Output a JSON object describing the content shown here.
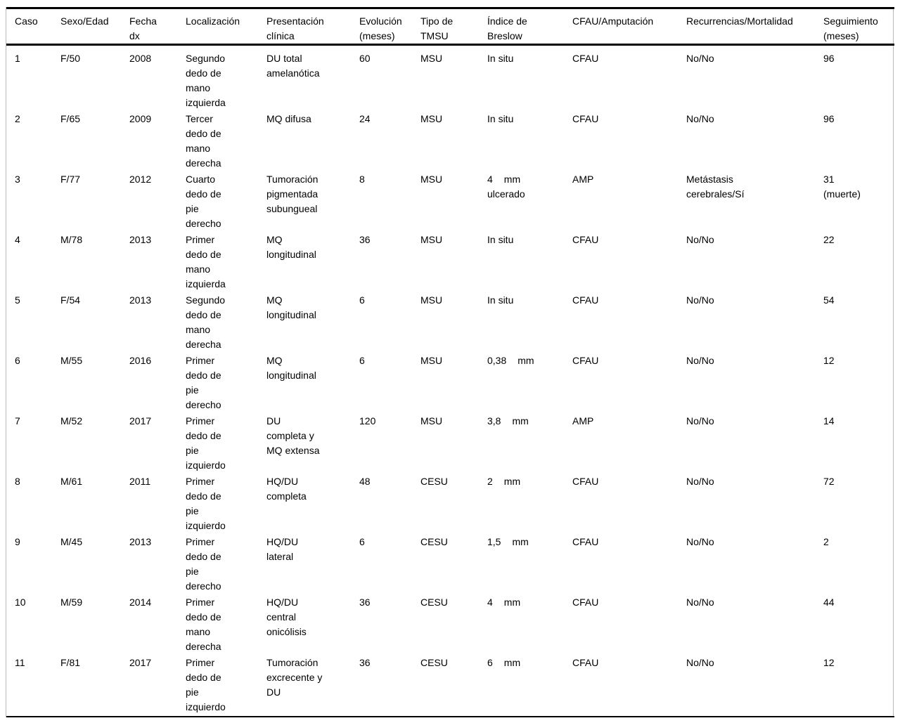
{
  "colors": {
    "background": "#ffffff",
    "text": "#000000",
    "rule": "#000000",
    "frame_border": "#b9b9b9"
  },
  "table": {
    "columns": [
      {
        "key": "caso",
        "label": "Caso"
      },
      {
        "key": "sexo_edad",
        "label": "Sexo/Edad"
      },
      {
        "key": "fecha_dx",
        "label": [
          "Fecha",
          "dx"
        ]
      },
      {
        "key": "localizacion",
        "label": "Localización"
      },
      {
        "key": "presentacion_clinica",
        "label": [
          "Presentación",
          "clínica"
        ]
      },
      {
        "key": "evolucion_meses",
        "label": [
          "Evolución",
          "(meses)"
        ]
      },
      {
        "key": "tipo_tmsu",
        "label": [
          "Tipo de",
          "TMSU"
        ]
      },
      {
        "key": "indice_breslow",
        "label": [
          "Índice de",
          "Breslow"
        ]
      },
      {
        "key": "cfau_amputacion",
        "label": "CFAU/Amputación"
      },
      {
        "key": "recurrencias_mortalidad",
        "label": "Recurrencias/Mortalidad"
      },
      {
        "key": "seguimiento_meses",
        "label": [
          "Seguimiento",
          "(meses)"
        ]
      }
    ],
    "rows": [
      {
        "caso": "1",
        "sexo_edad": "F/50",
        "fecha_dx": "2008",
        "localizacion": [
          "Segundo",
          "dedo de",
          "mano",
          "izquierda"
        ],
        "presentacion_clinica": [
          "DU total",
          "amelanótica"
        ],
        "evolucion_meses": "60",
        "tipo_tmsu": "MSU",
        "indice_breslow": {
          "value": "In situ"
        },
        "cfau_amputacion": "CFAU",
        "recurrencias_mortalidad": "No/No",
        "seguimiento_meses": "96"
      },
      {
        "caso": "2",
        "sexo_edad": "F/65",
        "fecha_dx": "2009",
        "localizacion": [
          "Tercer",
          "dedo de",
          "mano",
          "derecha"
        ],
        "presentacion_clinica": "MQ difusa",
        "evolucion_meses": "24",
        "tipo_tmsu": "MSU",
        "indice_breslow": {
          "value": "In situ"
        },
        "cfau_amputacion": "CFAU",
        "recurrencias_mortalidad": "No/No",
        "seguimiento_meses": "96"
      },
      {
        "caso": "3",
        "sexo_edad": "F/77",
        "fecha_dx": "2012",
        "localizacion": [
          "Cuarto",
          "dedo de",
          "pie",
          "derecho"
        ],
        "presentacion_clinica": [
          "Tumoración",
          "pigmentada",
          "subungueal"
        ],
        "evolucion_meses": "8",
        "tipo_tmsu": "MSU",
        "indice_breslow": {
          "value": "4",
          "unit": "mm",
          "note": "ulcerado"
        },
        "cfau_amputacion": "AMP",
        "recurrencias_mortalidad": [
          "Metástasis",
          "cerebrales/Sí"
        ],
        "seguimiento_meses": [
          "31",
          "(muerte)"
        ]
      },
      {
        "caso": "4",
        "sexo_edad": "M/78",
        "fecha_dx": "2013",
        "localizacion": [
          "Primer",
          "dedo de",
          "mano",
          "izquierda"
        ],
        "presentacion_clinica": [
          "MQ",
          "longitudinal"
        ],
        "evolucion_meses": "36",
        "tipo_tmsu": "MSU",
        "indice_breslow": {
          "value": "In situ"
        },
        "cfau_amputacion": "CFAU",
        "recurrencias_mortalidad": "No/No",
        "seguimiento_meses": "22"
      },
      {
        "caso": "5",
        "sexo_edad": "F/54",
        "fecha_dx": "2013",
        "localizacion": [
          "Segundo",
          "dedo de",
          "mano",
          "derecha"
        ],
        "presentacion_clinica": [
          "MQ",
          "longitudinal"
        ],
        "evolucion_meses": "6",
        "tipo_tmsu": "MSU",
        "indice_breslow": {
          "value": "In situ"
        },
        "cfau_amputacion": "CFAU",
        "recurrencias_mortalidad": "No/No",
        "seguimiento_meses": "54"
      },
      {
        "caso": "6",
        "sexo_edad": "M/55",
        "fecha_dx": "2016",
        "localizacion": [
          "Primer",
          "dedo de",
          "pie",
          "derecho"
        ],
        "presentacion_clinica": [
          "MQ",
          "longitudinal"
        ],
        "evolucion_meses": "6",
        "tipo_tmsu": "MSU",
        "indice_breslow": {
          "value": "0,38",
          "unit": "mm"
        },
        "cfau_amputacion": "CFAU",
        "recurrencias_mortalidad": "No/No",
        "seguimiento_meses": "12"
      },
      {
        "caso": "7",
        "sexo_edad": "M/52",
        "fecha_dx": "2017",
        "localizacion": [
          "Primer",
          "dedo de",
          "pie",
          "izquierdo"
        ],
        "presentacion_clinica": [
          "DU",
          "completa y",
          "MQ extensa"
        ],
        "evolucion_meses": "120",
        "tipo_tmsu": "MSU",
        "indice_breslow": {
          "value": "3,8",
          "unit": "mm"
        },
        "cfau_amputacion": "AMP",
        "recurrencias_mortalidad": "No/No",
        "seguimiento_meses": "14"
      },
      {
        "caso": "8",
        "sexo_edad": "M/61",
        "fecha_dx": "2011",
        "localizacion": [
          "Primer",
          "dedo de",
          "pie",
          "izquierdo"
        ],
        "presentacion_clinica": [
          "HQ/DU",
          "completa"
        ],
        "evolucion_meses": "48",
        "tipo_tmsu": "CESU",
        "indice_breslow": {
          "value": "2",
          "unit": "mm"
        },
        "cfau_amputacion": "CFAU",
        "recurrencias_mortalidad": "No/No",
        "seguimiento_meses": "72"
      },
      {
        "caso": "9",
        "sexo_edad": "M/45",
        "fecha_dx": "2013",
        "localizacion": [
          "Primer",
          "dedo de",
          "pie",
          "derecho"
        ],
        "presentacion_clinica": [
          "HQ/DU",
          "lateral"
        ],
        "evolucion_meses": "6",
        "tipo_tmsu": "CESU",
        "indice_breslow": {
          "value": "1,5",
          "unit": "mm"
        },
        "cfau_amputacion": "CFAU",
        "recurrencias_mortalidad": "No/No",
        "seguimiento_meses": "2"
      },
      {
        "caso": "10",
        "sexo_edad": "M/59",
        "fecha_dx": "2014",
        "localizacion": [
          "Primer",
          "dedo de",
          "mano",
          "derecha"
        ],
        "presentacion_clinica": [
          "HQ/DU",
          "central",
          "onicólisis"
        ],
        "evolucion_meses": "36",
        "tipo_tmsu": "CESU",
        "indice_breslow": {
          "value": "4",
          "unit": "mm"
        },
        "cfau_amputacion": "CFAU",
        "recurrencias_mortalidad": "No/No",
        "seguimiento_meses": "44"
      },
      {
        "caso": "11",
        "sexo_edad": "F/81",
        "fecha_dx": "2017",
        "localizacion": [
          "Primer",
          "dedo de",
          "pie",
          "izquierdo"
        ],
        "presentacion_clinica": [
          "Tumoración",
          "excrecente y",
          "DU"
        ],
        "evolucion_meses": "36",
        "tipo_tmsu": "CESU",
        "indice_breslow": {
          "value": "6",
          "unit": "mm"
        },
        "cfau_amputacion": "CFAU",
        "recurrencias_mortalidad": "No/No",
        "seguimiento_meses": "12"
      }
    ]
  }
}
